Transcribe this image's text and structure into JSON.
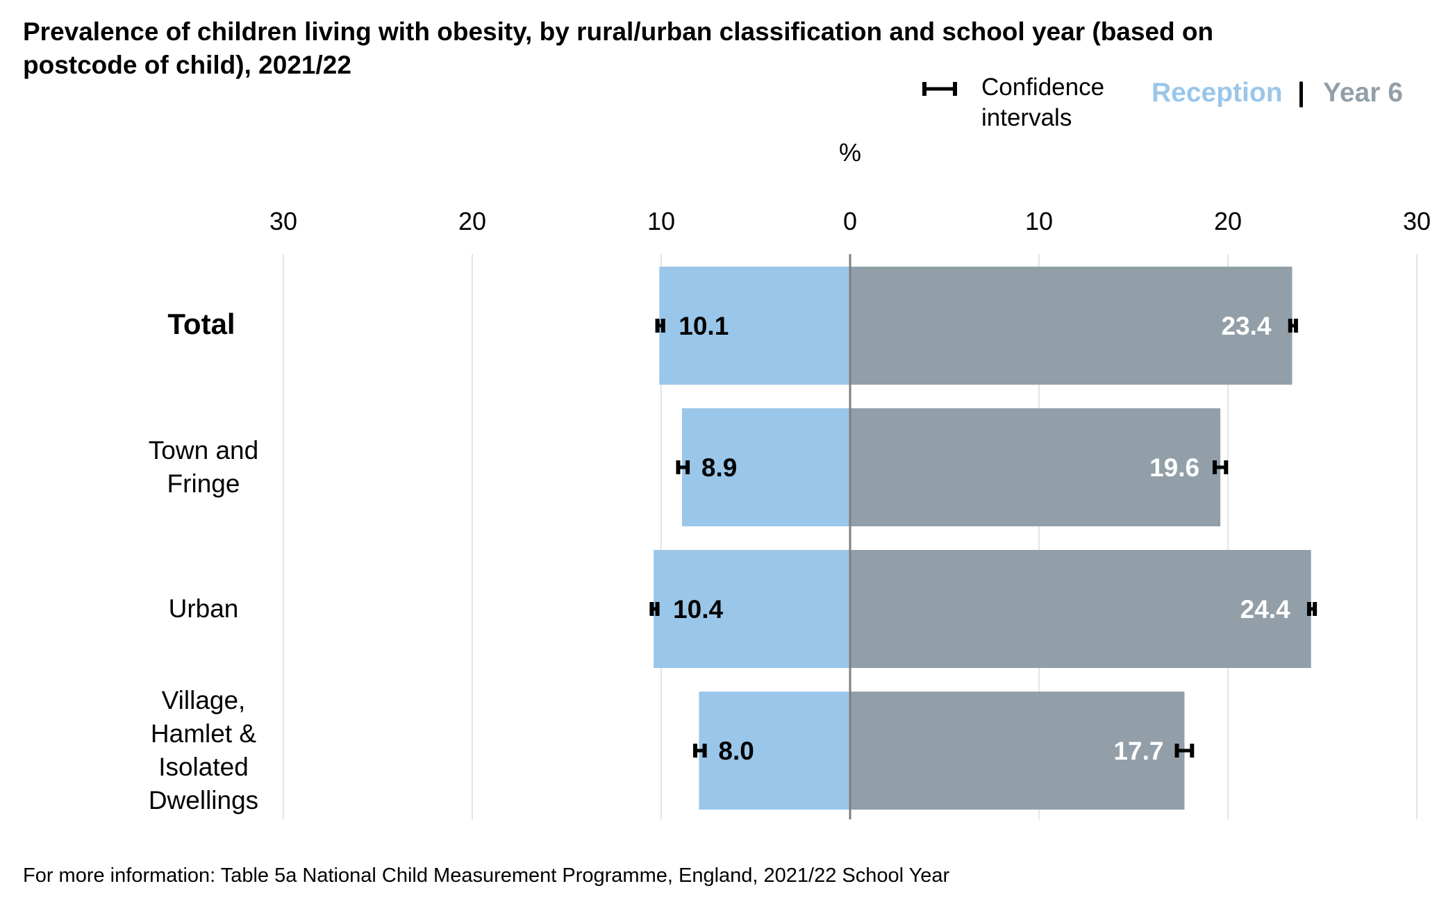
{
  "title_line1": "Prevalence of children living with obesity, by rural/urban classification and school year (based on",
  "title_line2": "postcode of child), 2021/22",
  "legend": {
    "ci_line1": "Confidence",
    "ci_line2": "intervals",
    "reception": "Reception",
    "separator": "|",
    "year6": "Year 6"
  },
  "unit": "%",
  "footer": "For more information: Table 5a National Child Measurement Programme, England, 2021/22 School Year",
  "colors": {
    "reception": "#9AC6EA",
    "year6": "#929FA8",
    "gridline": "#E4E4E4",
    "zero_line": "#7F7F7F",
    "ci": "#000000"
  },
  "chart_data": {
    "type": "bar",
    "orientation": "horizontal-diverging",
    "categories": [
      "Total",
      "Town and Fringe",
      "Urban",
      "Village, Hamlet & Isolated Dwellings"
    ],
    "category_lines": [
      [
        "Total"
      ],
      [
        "Town and",
        "Fringe"
      ],
      [
        "Urban"
      ],
      [
        "Village,",
        "Hamlet &",
        "Isolated",
        "Dwellings"
      ]
    ],
    "bold_categories": [
      "Total"
    ],
    "series": [
      {
        "name": "Reception",
        "side": "left",
        "values": [
          10.1,
          8.9,
          10.4,
          8.0
        ],
        "labels": [
          "10.1",
          "8.9",
          "10.4",
          "8.0"
        ],
        "ci": [
          [
            9.9,
            10.2
          ],
          [
            8.6,
            9.1
          ],
          [
            10.2,
            10.5
          ],
          [
            7.7,
            8.2
          ]
        ]
      },
      {
        "name": "Year 6",
        "side": "right",
        "values": [
          23.4,
          19.6,
          24.4,
          17.7
        ],
        "labels": [
          "23.4",
          "19.6",
          "24.4",
          "17.7"
        ],
        "ci": [
          [
            23.3,
            23.6
          ],
          [
            19.3,
            19.9
          ],
          [
            24.3,
            24.6
          ],
          [
            17.3,
            18.1
          ]
        ]
      }
    ],
    "xticks": [
      30,
      20,
      10,
      0,
      10,
      20,
      30
    ],
    "xlim": [
      -30,
      30
    ],
    "xlabel": "%",
    "grid": true,
    "legend_position": "top-right"
  }
}
